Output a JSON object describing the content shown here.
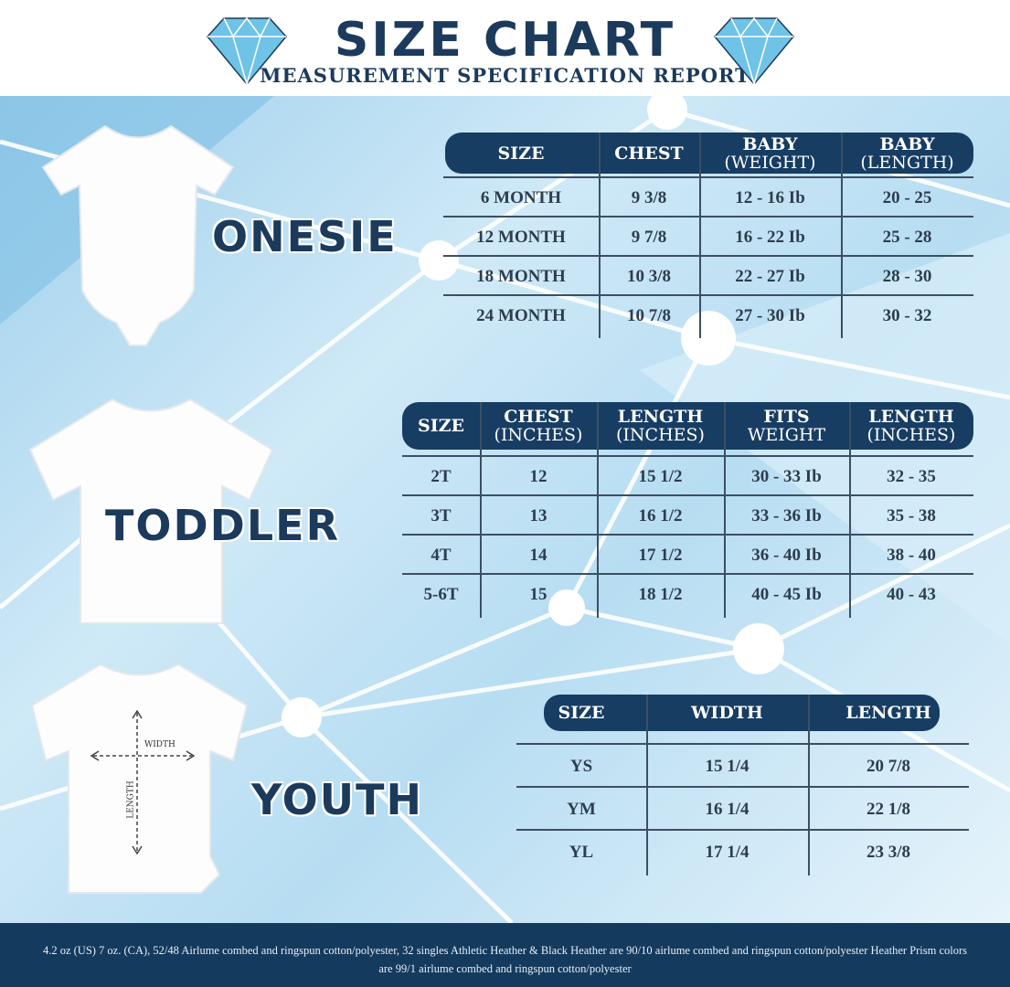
{
  "header": {
    "title": "SIZE CHART",
    "subtitle": "MEASUREMENT SPECIFICATION REPORT"
  },
  "colors": {
    "navy": "#173d63",
    "background": "#b7ddf2",
    "diamond": "#6fc3e6"
  },
  "sections": [
    {
      "label": "ONESIE",
      "headers": [
        [
          "SIZE",
          ""
        ],
        [
          "CHEST",
          ""
        ],
        [
          "BABY",
          "(WEIGHT)"
        ],
        [
          "BABY",
          "(LENGTH)"
        ]
      ],
      "rows": [
        [
          "6 MONTH",
          "9 3/8",
          "12 - 16 Ib",
          "20 - 25"
        ],
        [
          "12 MONTH",
          "9 7/8",
          "16 - 22 Ib",
          "25 - 28"
        ],
        [
          "18  MONTH",
          "10 3/8",
          "22 - 27 Ib",
          "28 - 30"
        ],
        [
          "24 MONTH",
          "10 7/8",
          "27 - 30 Ib",
          "30 - 32"
        ]
      ]
    },
    {
      "label": "TODDLER",
      "headers": [
        [
          "SIZE",
          ""
        ],
        [
          "CHEST",
          "(INCHES)"
        ],
        [
          "LENGTH",
          "(INCHES)"
        ],
        [
          "FITS",
          "WEIGHT"
        ],
        [
          "LENGTH",
          "(INCHES)"
        ]
      ],
      "rows": [
        [
          "2T",
          "12",
          "15 1/2",
          "30 - 33 Ib",
          "32 - 35"
        ],
        [
          "3T",
          "13",
          "16 1/2",
          "33 - 36 Ib",
          "35 - 38"
        ],
        [
          "4T",
          "14",
          "17 1/2",
          "36 - 40 Ib",
          "38 - 40"
        ],
        [
          "5-6T",
          "15",
          "18 1/2",
          "40 - 45 Ib",
          "40 - 43"
        ]
      ]
    },
    {
      "label": "YOUTH",
      "headers": [
        [
          "SIZE",
          ""
        ],
        [
          "WIDTH",
          ""
        ],
        [
          "LENGTH",
          ""
        ]
      ],
      "rows": [
        [
          "YS",
          "15 1/4",
          "20 7/8"
        ],
        [
          "YM",
          "16 1/4",
          "22 1/8"
        ],
        [
          "YL",
          "17 1/4",
          "23 3/8"
        ]
      ]
    }
  ],
  "youth_shirt": {
    "width_label": "WIDTH",
    "length_label": "LENGTH"
  },
  "footer": "4.2 oz (US) 7 oz. (CA), 52/48 Airlume combed and ringspun cotton/polyester, 32 singles Athletic Heather & Black Heather are 90/10 airlume combed and ringspun cotton/polyester Heather Prism colors are 99/1 airlume combed and ringspun cotton/polyester"
}
